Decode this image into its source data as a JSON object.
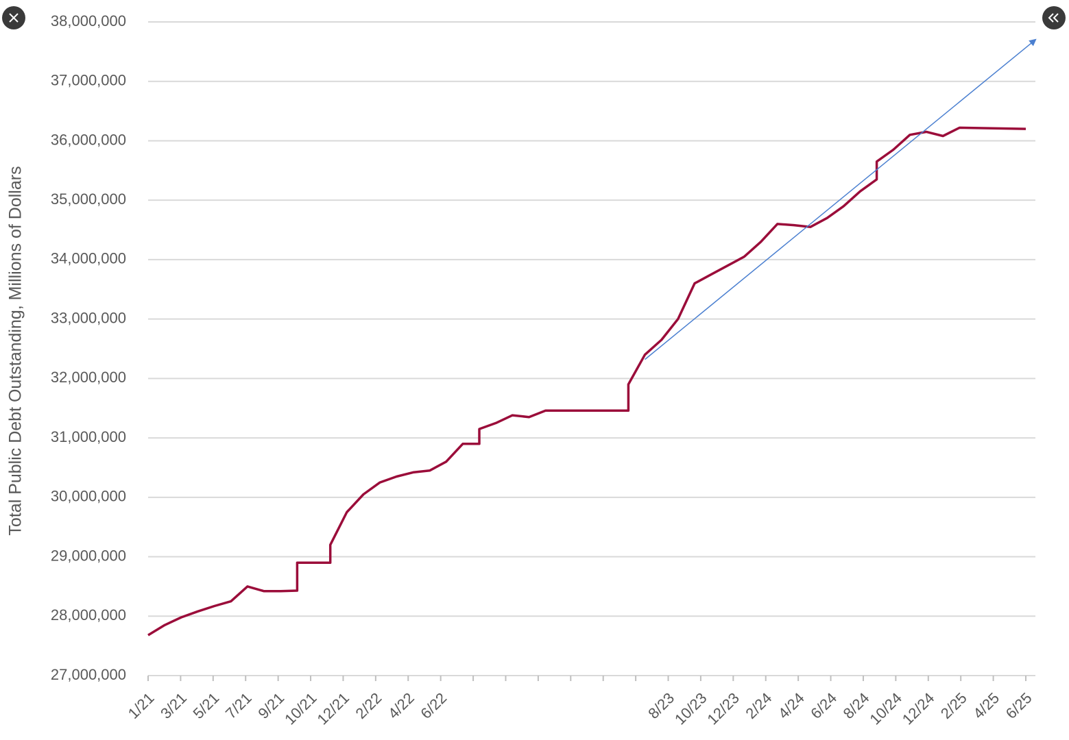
{
  "chart_data": {
    "type": "line",
    "y_label": "Total Public Debt Outstanding, Millions of Dollars",
    "color": "#9b0d3a",
    "grid": true,
    "ylim": [
      27000000,
      38000000
    ],
    "yticks": [
      {
        "value": 27000000,
        "label": "27,000,000"
      },
      {
        "value": 28000000,
        "label": "28,000,000"
      },
      {
        "value": 29000000,
        "label": "29,000,000"
      },
      {
        "value": 30000000,
        "label": "30,000,000"
      },
      {
        "value": 31000000,
        "label": "31,000,000"
      },
      {
        "value": 32000000,
        "label": "32,000,000"
      },
      {
        "value": 33000000,
        "label": "33,000,000"
      },
      {
        "value": 34000000,
        "label": "34,000,000"
      },
      {
        "value": 35000000,
        "label": "35,000,000"
      },
      {
        "value": 36000000,
        "label": "36,000,000"
      },
      {
        "value": 37000000,
        "label": "37,000,000"
      },
      {
        "value": 38000000,
        "label": "38,000,000"
      }
    ],
    "xlim": [
      "1/21",
      "6/25"
    ],
    "xticks": [
      "1/21",
      "3/21",
      "5/21",
      "7/21",
      "9/21",
      "10/21",
      "12/21",
      "2/22",
      "4/22",
      "6/22",
      null,
      null,
      null,
      null,
      null,
      null,
      "8/23",
      "10/23",
      "12/23",
      "2/24",
      "4/24",
      "6/24",
      "8/24",
      "10/24",
      "12/24",
      "2/25",
      "4/25",
      "6/25"
    ],
    "x": [
      "1/21",
      "2/21",
      "3/21",
      "4/21",
      "5/21",
      "6/21",
      "7/21",
      "8/21",
      "9/21",
      "10/21",
      "10/21",
      "12/21",
      "12/21",
      "1/22",
      "2/22",
      "3/22",
      "4/22",
      "5/22",
      "6/22",
      "7/22",
      "8/22",
      "9/22",
      "9/22",
      "10/22",
      "11/22",
      "12/22",
      "1/23",
      "6/23",
      "6/23",
      "7/23",
      "8/23",
      "9/23",
      "10/23",
      "11/23",
      "12/23",
      "1/24",
      "2/24",
      "3/24",
      "4/24",
      "5/24",
      "6/24",
      "7/24",
      "8/24",
      "9/24",
      "9/24",
      "10/24",
      "11/24",
      "12/24",
      "1/25",
      "2/25",
      "6/25"
    ],
    "values": [
      27680000,
      27850000,
      27980000,
      28080000,
      28170000,
      28250000,
      28500000,
      28420000,
      28420000,
      28430000,
      28900000,
      28900000,
      29200000,
      29750000,
      30050000,
      30250000,
      30350000,
      30420000,
      30450000,
      30600000,
      30900000,
      30900000,
      31150000,
      31250000,
      31380000,
      31350000,
      31460000,
      31460000,
      31900000,
      32400000,
      32650000,
      33000000,
      33600000,
      33750000,
      33900000,
      34050000,
      34300000,
      34600000,
      34580000,
      34550000,
      34700000,
      34900000,
      35150000,
      35350000,
      35650000,
      35850000,
      36100000,
      36150000,
      36080000,
      36220000,
      36200000
    ],
    "trend": {
      "x": [
        "7/23",
        "6/25"
      ],
      "values": [
        32320000,
        37700000
      ],
      "color": "#4a7fd0"
    }
  }
}
